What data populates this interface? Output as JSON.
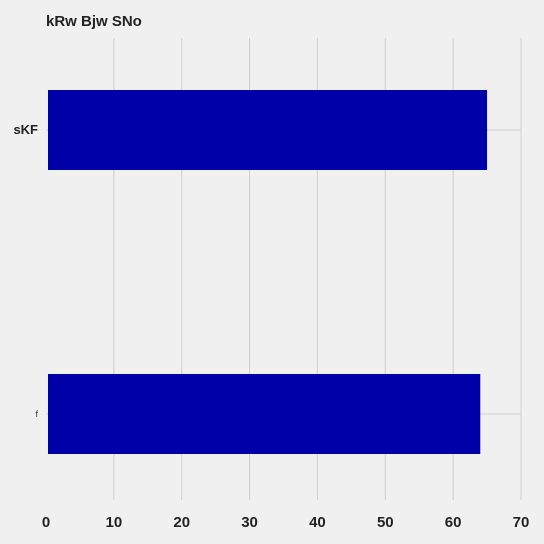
{
  "chart_data": {
    "type": "bar",
    "orientation": "horizontal",
    "title": "kRw Bjw SNo",
    "xlabel": "",
    "ylabel": "",
    "categories": [
      "sKF",
      "f"
    ],
    "values": [
      65,
      64
    ],
    "xlim": [
      0,
      70
    ],
    "xticks": [
      0,
      10,
      20,
      30,
      40,
      50,
      60,
      70
    ],
    "grid": true,
    "legend": "none",
    "bar_color": "#0000a8",
    "background_color": "#f0f0f0",
    "grid_color": "#cfcfcf"
  }
}
